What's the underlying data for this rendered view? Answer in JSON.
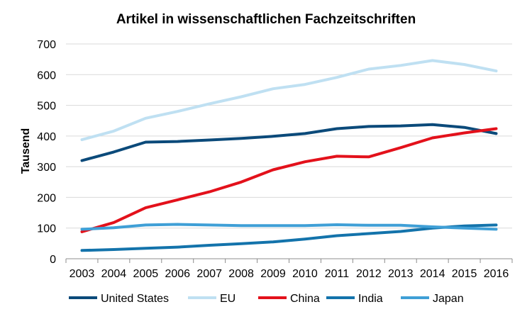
{
  "chart_data": {
    "type": "line",
    "title": "Artikel in wissenschaftlichen Fachzeitschriften",
    "xlabel": "",
    "ylabel": "Tausend",
    "categories": [
      "2003",
      "2004",
      "2005",
      "2006",
      "2007",
      "2008",
      "2009",
      "2010",
      "2011",
      "2012",
      "2013",
      "2014",
      "2015",
      "2016"
    ],
    "ylim": [
      0,
      700
    ],
    "yticks": [
      "0",
      "100",
      "200",
      "300",
      "400",
      "500",
      "600",
      "700"
    ],
    "grid": true,
    "legend_position": "bottom",
    "series": [
      {
        "name": "United States",
        "color": "#0b4a7a",
        "values": [
          320,
          348,
          380,
          382,
          387,
          392,
          399,
          408,
          424,
          431,
          433,
          437,
          428,
          408
        ]
      },
      {
        "name": "EU",
        "color": "#bfe0f2",
        "values": [
          388,
          416,
          458,
          480,
          505,
          528,
          554,
          568,
          591,
          618,
          630,
          646,
          633,
          612
        ]
      },
      {
        "name": "China",
        "color": "#e3111b",
        "values": [
          88,
          118,
          166,
          192,
          218,
          250,
          290,
          316,
          334,
          332,
          362,
          394,
          410,
          424
        ]
      },
      {
        "name": "India",
        "color": "#1373ab",
        "values": [
          27,
          30,
          34,
          38,
          44,
          49,
          55,
          64,
          75,
          82,
          89,
          100,
          107,
          110
        ]
      },
      {
        "name": "Japan",
        "color": "#3f9fd6",
        "values": [
          96,
          101,
          110,
          112,
          110,
          108,
          108,
          108,
          111,
          109,
          109,
          104,
          100,
          96
        ]
      }
    ]
  }
}
